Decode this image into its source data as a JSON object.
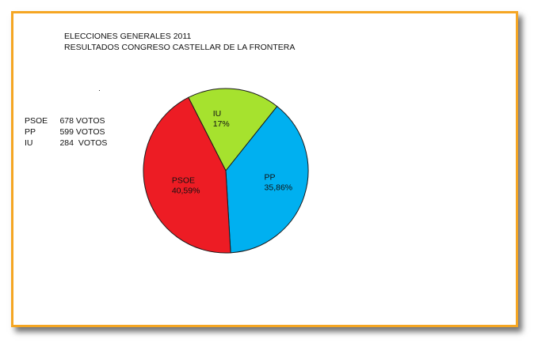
{
  "titles": {
    "line1": "ELECCIONES GENERALES 2011",
    "line2": "RESULTADOS CONGRESO CASTELLAR DE LA FRONTERA"
  },
  "legend": [
    {
      "party": "PSOE",
      "votes": "678",
      "unit": "VOTOS"
    },
    {
      "party": "PP",
      "votes": "599",
      "unit": "VOTOS"
    },
    {
      "party": "IU",
      "votes": "284",
      "unit": " VOTOS"
    }
  ],
  "chart_data": {
    "type": "pie",
    "title": "ELECCIONES GENERALES 2011",
    "subtitle": "RESULTADOS CONGRESO CASTELLAR DE LA FRONTERA",
    "slices": [
      {
        "label": "IU",
        "pct_label": "17%",
        "value": 284,
        "color": "#a6e22e"
      },
      {
        "label": "PP",
        "pct_label": "35,86%",
        "value": 599,
        "color": "#00b0f0"
      },
      {
        "label": "PSOE",
        "pct_label": "40,59%",
        "value": 678,
        "color": "#ed1c24"
      }
    ],
    "legend_position": "left"
  }
}
